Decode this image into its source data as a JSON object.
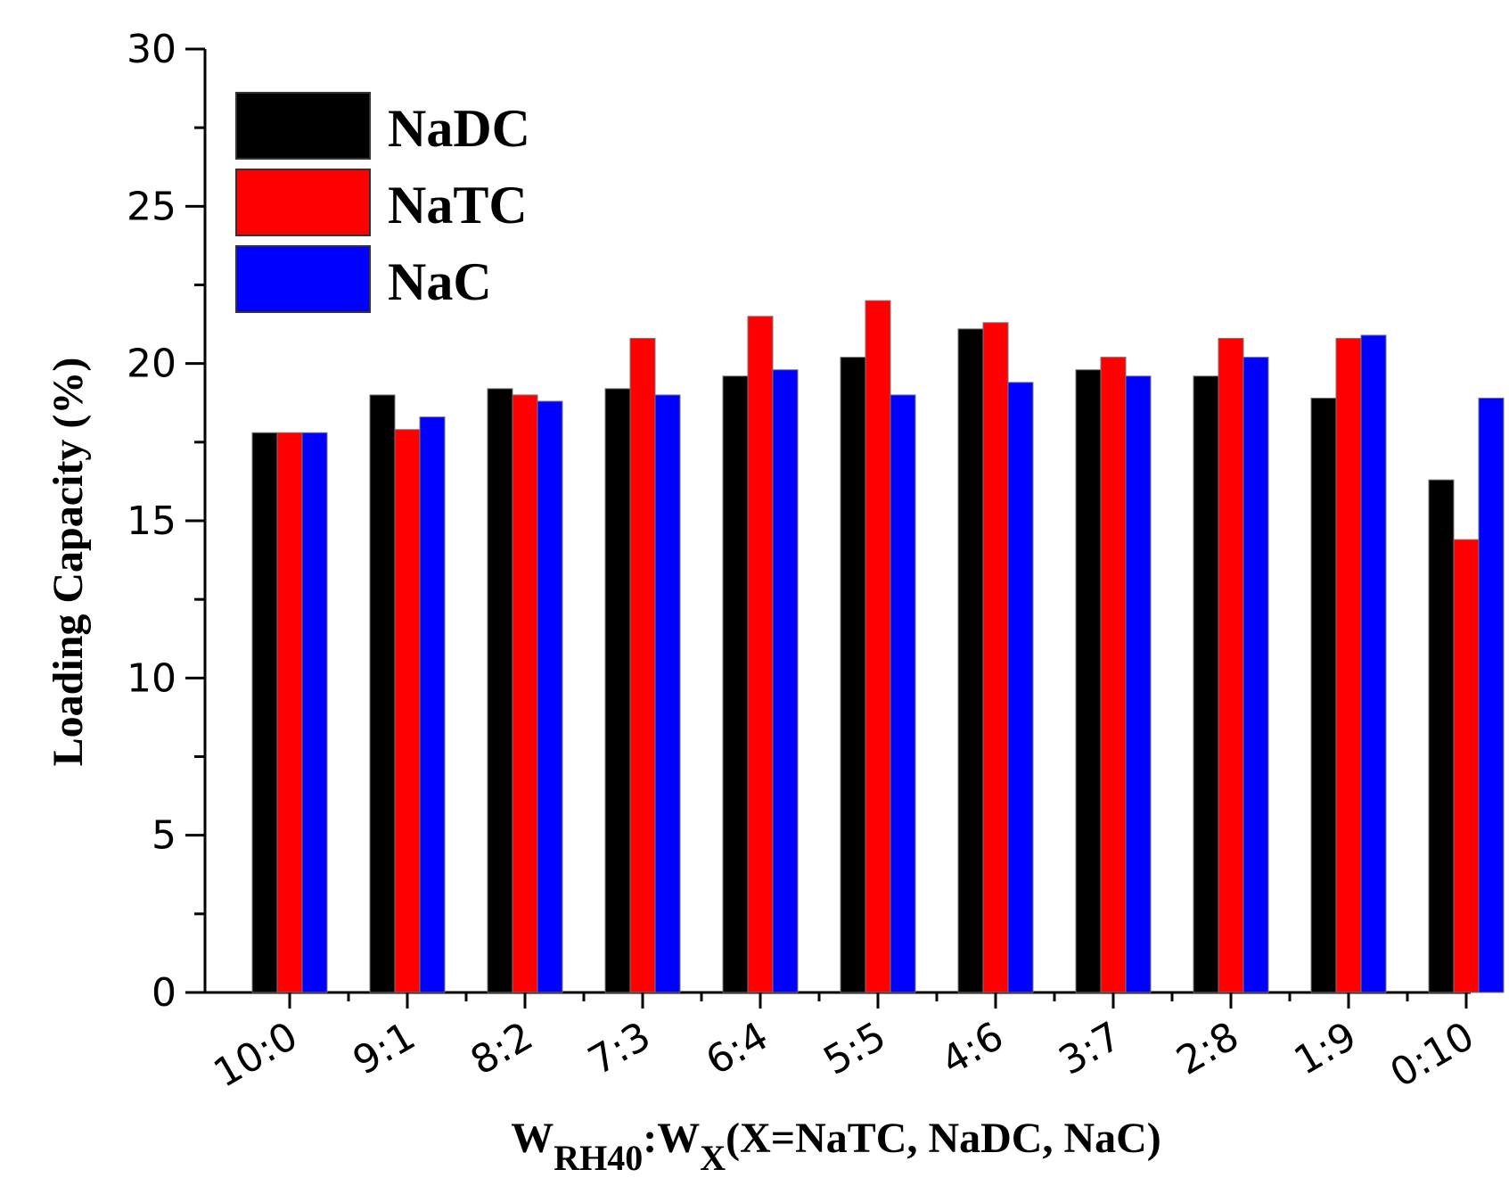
{
  "chart_data": {
    "type": "bar",
    "title": "",
    "categories": [
      "10:0",
      "9:1",
      "8:2",
      "7:3",
      "6:4",
      "5:5",
      "4:6",
      "3:7",
      "2:8",
      "1:9",
      "0:10"
    ],
    "series": [
      {
        "name": "NaDC",
        "color": "#000000",
        "values": [
          17.8,
          19.0,
          19.2,
          19.2,
          19.6,
          20.2,
          21.1,
          19.8,
          19.6,
          18.9,
          16.3
        ]
      },
      {
        "name": "NaTC",
        "color": "#ff0000",
        "values": [
          17.8,
          17.9,
          19.0,
          20.8,
          21.5,
          22.0,
          21.3,
          20.2,
          20.8,
          20.8,
          14.4
        ]
      },
      {
        "name": "NaC",
        "color": "#0000ff",
        "values": [
          17.8,
          18.3,
          18.8,
          19.0,
          19.8,
          19.0,
          19.4,
          19.6,
          20.2,
          20.9,
          18.9
        ]
      }
    ],
    "ylabel": "Loading Capacity (%)",
    "xlabel": {
      "w1": "W",
      "sub1": "RH40",
      "colon": ":W",
      "sub2": "X",
      "rest": "(X=NaTC, NaDC, NaC)"
    },
    "ylim": [
      0,
      30
    ],
    "yticks": [
      "0",
      "5",
      "10",
      "15",
      "20",
      "25",
      "30"
    ],
    "legend_position": "top-left",
    "grid": false
  }
}
